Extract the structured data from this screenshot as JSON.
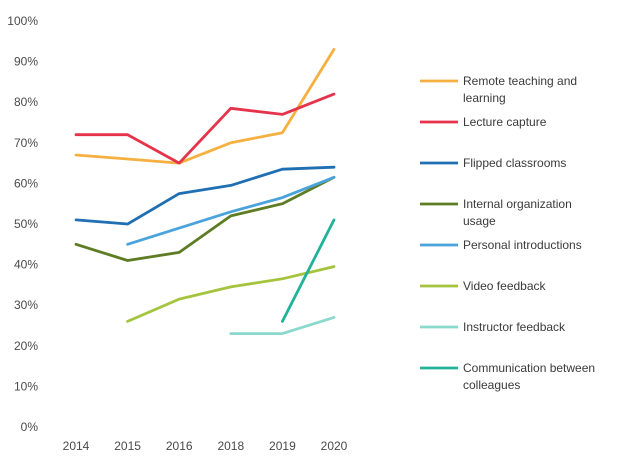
{
  "chart_data": {
    "type": "line",
    "title": "",
    "xlabel": "",
    "ylabel": "",
    "categories": [
      "2014",
      "2015",
      "2016",
      "2018",
      "2019",
      "2020"
    ],
    "ylim": [
      0,
      100
    ],
    "y_ticks": [
      "0%",
      "10%",
      "20%",
      "30%",
      "40%",
      "50%",
      "60%",
      "70%",
      "80%",
      "90%",
      "100%"
    ],
    "y_tick_values": [
      0,
      10,
      20,
      30,
      40,
      50,
      60,
      70,
      80,
      90,
      100
    ],
    "grid": false,
    "legend_position": "right",
    "series": [
      {
        "name": "Remote teaching and learning",
        "color": "#f6b040",
        "values": [
          67,
          66,
          65,
          70,
          72.5,
          93
        ]
      },
      {
        "name": "Lecture capture",
        "color": "#e5334b",
        "values": [
          72,
          72,
          65,
          78.5,
          77,
          82
        ]
      },
      {
        "name": "Flipped classrooms",
        "color": "#1f6fb2",
        "values": [
          51,
          50,
          57.5,
          59.5,
          63.5,
          64
        ]
      },
      {
        "name": "Internal organization usage",
        "color": "#5d7c23",
        "values": [
          45,
          41,
          43,
          52,
          55,
          61.5
        ]
      },
      {
        "name": "Personal introductions",
        "color": "#4ba3dc",
        "values": [
          null,
          45,
          49,
          53,
          56.5,
          61.5
        ]
      },
      {
        "name": "Video feedback",
        "color": "#a3c43c",
        "values": [
          null,
          26,
          31.5,
          34.5,
          36.5,
          39.5
        ]
      },
      {
        "name": "Instructor feedback",
        "color": "#8ad9cd",
        "values": [
          null,
          null,
          null,
          23,
          23,
          27
        ]
      },
      {
        "name": "Communication between colleagues",
        "color": "#22b199",
        "values": [
          null,
          null,
          null,
          null,
          26,
          51
        ]
      }
    ]
  }
}
